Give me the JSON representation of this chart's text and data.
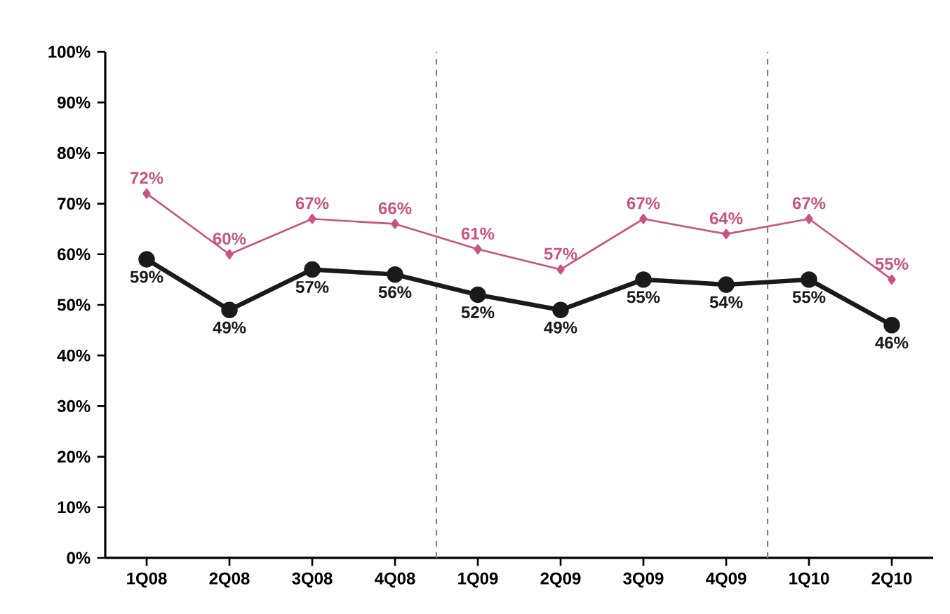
{
  "chart_data": {
    "type": "line",
    "categories": [
      "1Q08",
      "2Q08",
      "3Q08",
      "4Q08",
      "1Q09",
      "2Q09",
      "3Q09",
      "4Q09",
      "1Q10",
      "2Q10"
    ],
    "series": [
      {
        "color": "#c8557f",
        "marker": "diamond",
        "values": [
          72,
          60,
          67,
          66,
          61,
          57,
          67,
          64,
          67,
          55
        ],
        "value_labels": [
          "72%",
          "60%",
          "67%",
          "66%",
          "61%",
          "57%",
          "67%",
          "64%",
          "67%",
          "55%"
        ]
      },
      {
        "color": "#1a1a1a",
        "marker": "circle",
        "values": [
          59,
          49,
          57,
          56,
          52,
          49,
          55,
          54,
          55,
          46
        ],
        "value_labels": [
          "59%",
          "49%",
          "57%",
          "56%",
          "52%",
          "49%",
          "55%",
          "54%",
          "55%",
          "46%"
        ]
      }
    ],
    "ylim": [
      0,
      100
    ],
    "yticks": [
      {
        "value": 0,
        "label": "0%"
      },
      {
        "value": 10,
        "label": "10%"
      },
      {
        "value": 20,
        "label": "20%"
      },
      {
        "value": 30,
        "label": "30%"
      },
      {
        "value": 40,
        "label": "40%"
      },
      {
        "value": 50,
        "label": "50%"
      },
      {
        "value": 60,
        "label": "60%"
      },
      {
        "value": 70,
        "label": "70%"
      },
      {
        "value": 80,
        "label": "80%"
      },
      {
        "value": 90,
        "label": "90%"
      },
      {
        "value": 100,
        "label": "100%"
      }
    ],
    "grid": false,
    "line_style": "solid"
  }
}
